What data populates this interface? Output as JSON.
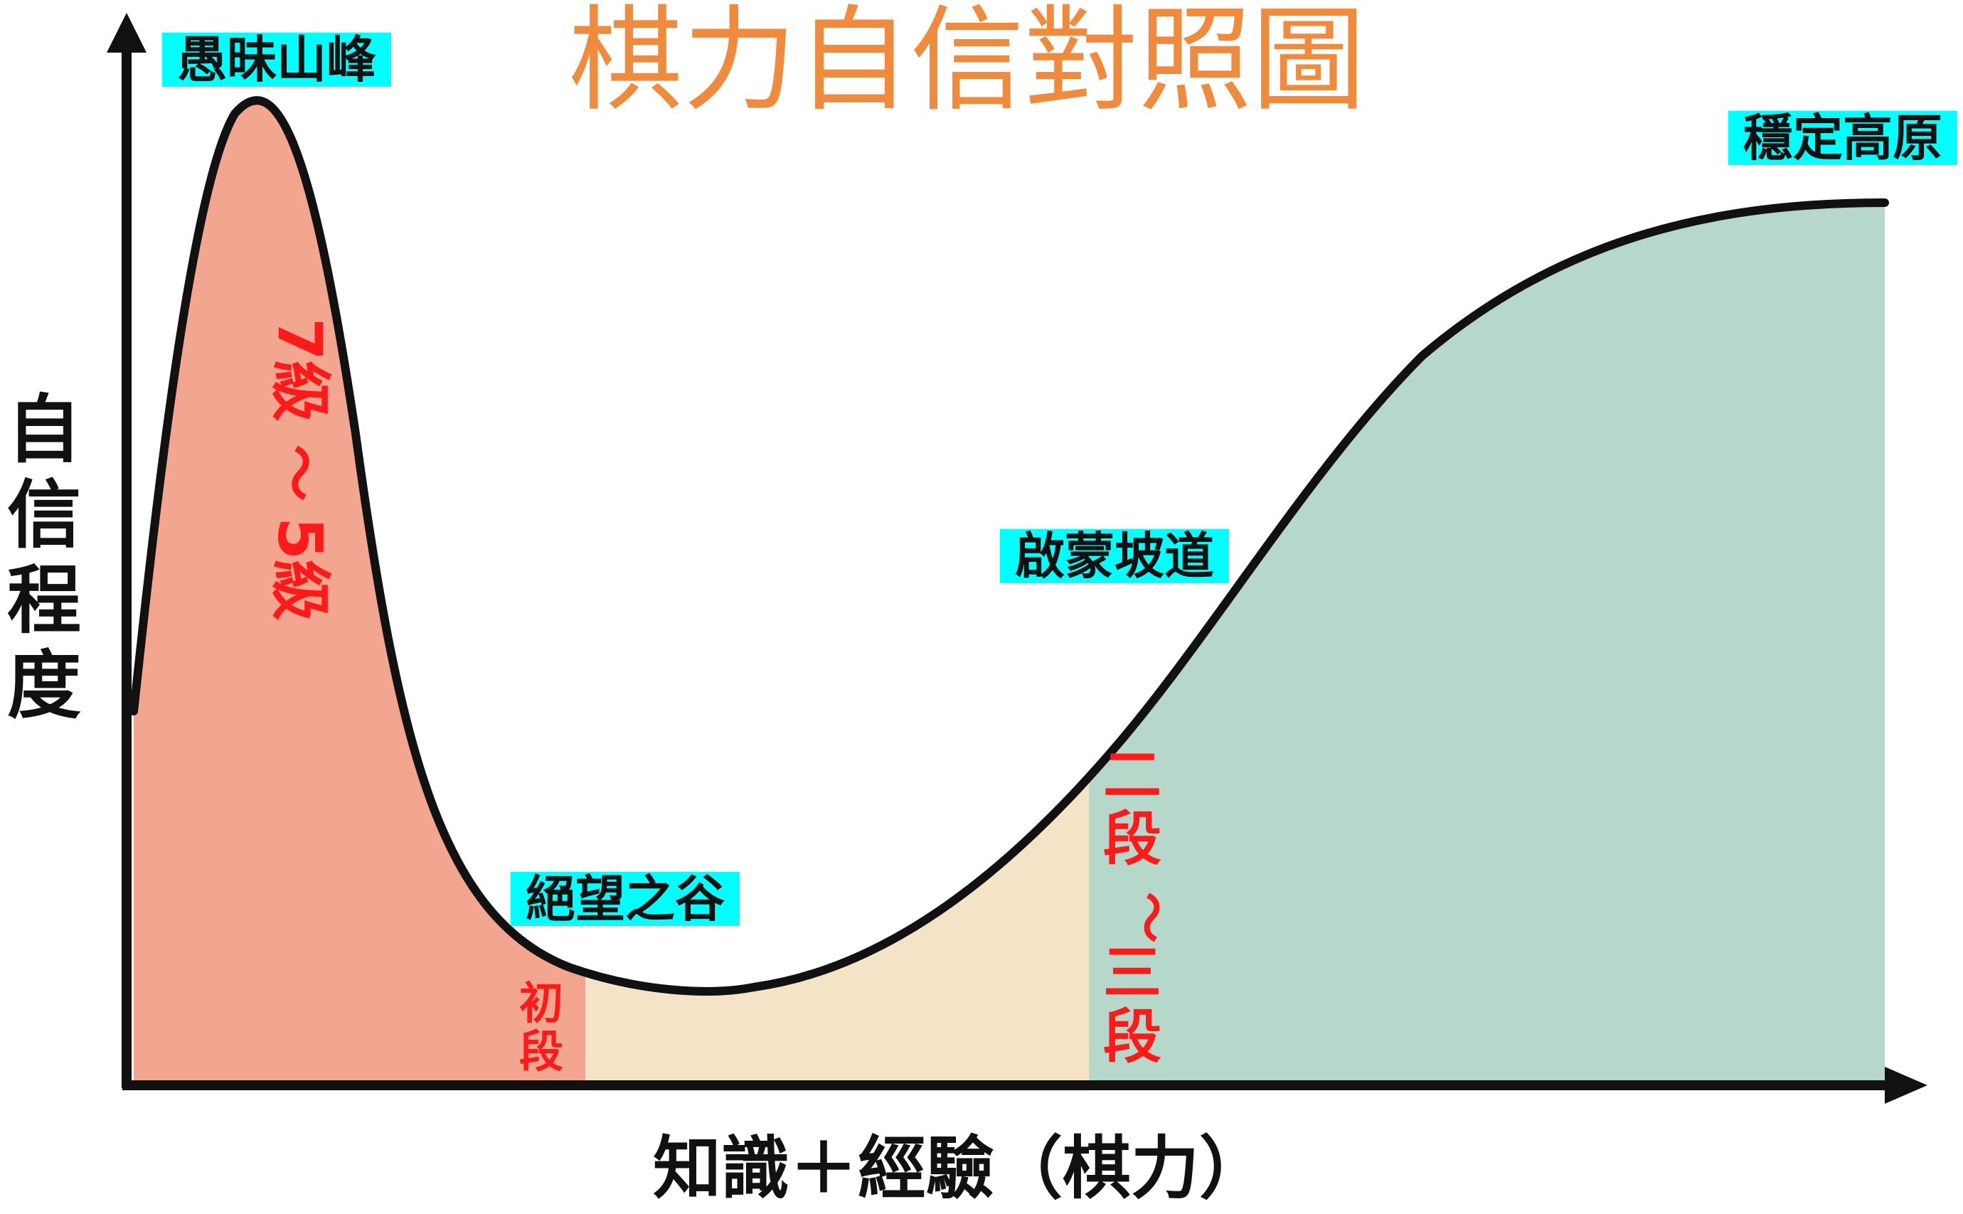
{
  "title": "棋力自信對照圖",
  "y_axis_label": "自信程度",
  "x_axis_label": "知識＋經驗（棋力）",
  "stages": {
    "peak": "愚昧山峰",
    "valley": "絕望之谷",
    "slope": "啟蒙坡道",
    "plateau": "穩定高原"
  },
  "levels": {
    "kyu_from": "7級",
    "kyu_sep": "～",
    "kyu_to": "5級",
    "shodan": "初段",
    "dan_from": "二段",
    "dan_sep": "～",
    "dan_to": "三段"
  },
  "colors": {
    "title": "#f08a3c",
    "region_kyu": "#f2a58f",
    "region_shodan": "#f5e3c8",
    "region_dan": "#b5d8ca",
    "stage_highlight": "#00ffff",
    "level_text": "#ff1a1a",
    "curve": "#111111"
  }
}
